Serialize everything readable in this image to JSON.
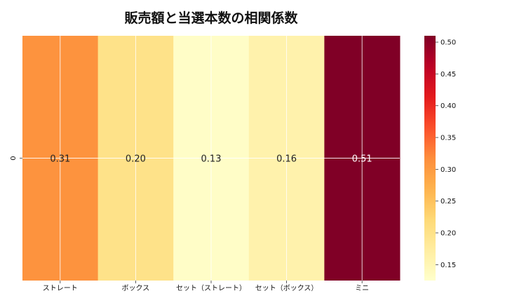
{
  "chart_data": {
    "type": "heatmap",
    "title": "販売額と当選本数の相関係数",
    "categories": [
      "ストレート",
      "ボックス",
      "セット（ストレート）",
      "セット（ボックス）",
      "ミニ"
    ],
    "rows": [
      "0"
    ],
    "values": [
      [
        0.31,
        0.2,
        0.13,
        0.16,
        0.51
      ]
    ],
    "value_labels": [
      "0.31",
      "0.20",
      "0.13",
      "0.16",
      "0.51"
    ],
    "colorbar": {
      "min": 0.125,
      "max": 0.51,
      "ticks": [
        "0.15",
        "0.20",
        "0.25",
        "0.30",
        "0.35",
        "0.40",
        "0.45",
        "0.50"
      ],
      "tick_values": [
        0.15,
        0.2,
        0.25,
        0.3,
        0.35,
        0.4,
        0.45,
        0.5
      ],
      "colormap": "YlOrRd"
    },
    "grid": true
  }
}
